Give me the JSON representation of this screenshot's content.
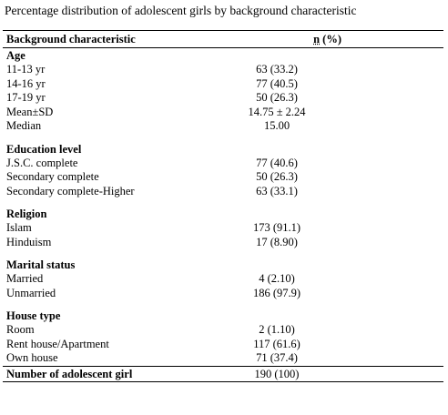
{
  "caption": "Percentage distribution of adolescent  girls by background characteristic",
  "header": {
    "label": "Background characteristic",
    "value_n": "n",
    "value_rest": " (%)"
  },
  "groups": [
    {
      "title": "Age",
      "rows": [
        {
          "label": "11-13 yr",
          "value": "63 (33.2)"
        },
        {
          "label": "14-16 yr",
          "value": "77 (40.5)"
        },
        {
          "label": "17-19 yr",
          "value": "50 (26.3)"
        },
        {
          "label": "Mean±SD",
          "value": "14.75 ± 2.24"
        },
        {
          "label": "Median",
          "value": "15.00"
        }
      ]
    },
    {
      "title": "Education level",
      "rows": [
        {
          "label": "J.S.C. complete",
          "value": "77 (40.6)"
        },
        {
          "label": "Secondary complete",
          "value": "50 (26.3)"
        },
        {
          "label": "Secondary complete-Higher",
          "value": "63 (33.1)"
        }
      ]
    },
    {
      "title": "Religion",
      "rows": [
        {
          "label": "Islam",
          "value": "173 (91.1)"
        },
        {
          "label": "Hinduism",
          "value": "17 (8.90)"
        }
      ]
    },
    {
      "title": "Marital status",
      "rows": [
        {
          "label": "Married",
          "value": "4 (2.10)"
        },
        {
          "label": "Unmarried",
          "value": "186 (97.9)"
        }
      ]
    },
    {
      "title": "House type",
      "rows": [
        {
          "label": "Room",
          "value": "2 (1.10)"
        },
        {
          "label": "Rent house/Apartment",
          "value": "117 (61.6)"
        },
        {
          "label": "Own house",
          "value": "71 (37.4)"
        }
      ]
    }
  ],
  "total": {
    "label": "Number of adolescent girl",
    "value": "190 (100)"
  }
}
